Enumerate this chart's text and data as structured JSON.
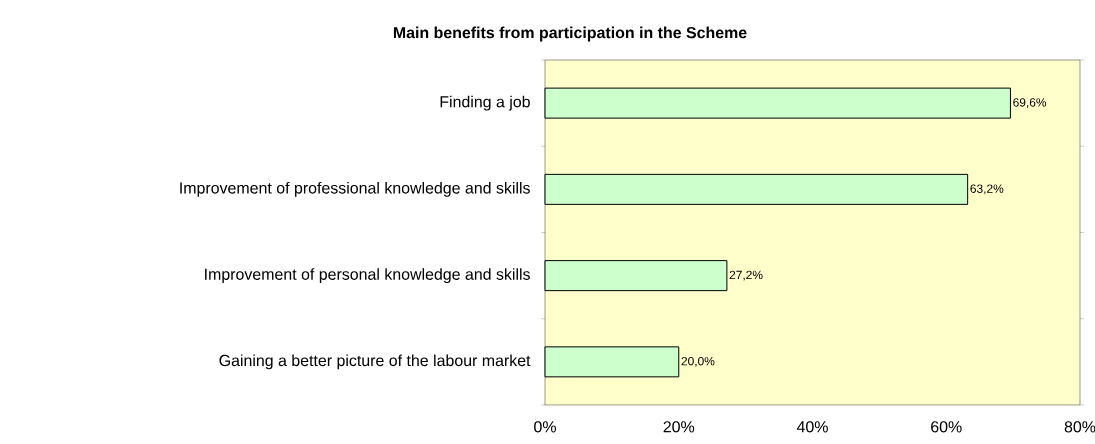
{
  "chart_data": {
    "type": "bar",
    "orientation": "horizontal",
    "title": "Main benefits from participation in the Scheme",
    "categories": [
      "Finding a job",
      "Improvement of professional knowledge and skills",
      "Improvement of personal knowledge and skills",
      "Gaining a better picture of the labour market"
    ],
    "values": [
      69.6,
      63.2,
      27.2,
      20.0
    ],
    "value_labels": [
      "69,6%",
      "63,2%",
      "27,2%",
      "20,0%"
    ],
    "color": "#ccffcc",
    "xlim": [
      0,
      80
    ],
    "xticks": [
      {
        "value": 0,
        "label": "0%"
      },
      {
        "value": 20,
        "label": "20%"
      },
      {
        "value": 40,
        "label": "40%"
      },
      {
        "value": 60,
        "label": "60%"
      },
      {
        "value": 80,
        "label": "80%"
      }
    ],
    "grid": false
  }
}
